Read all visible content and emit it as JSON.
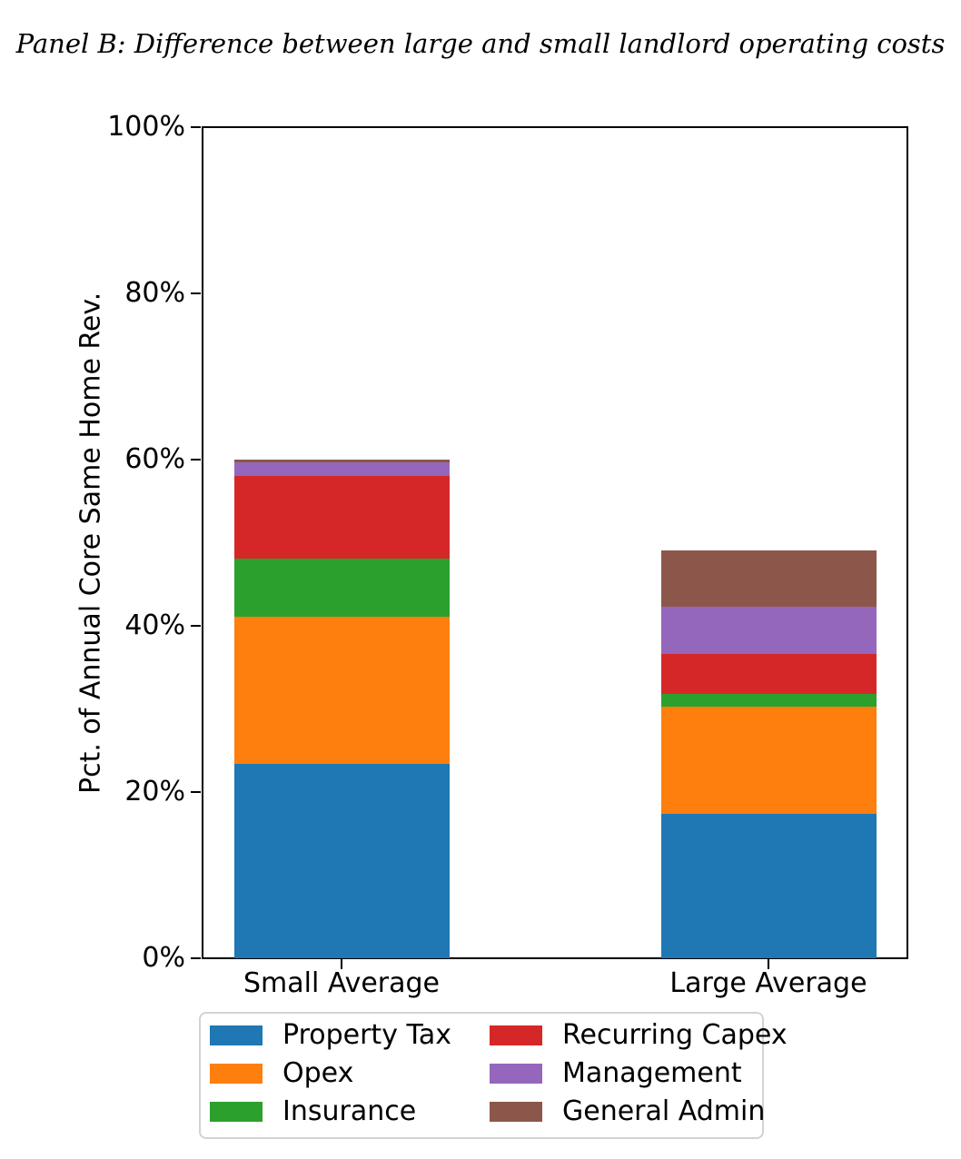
{
  "chart_data": {
    "type": "bar",
    "stacked": true,
    "title": "Panel B: Difference between large and small landlord operating costs",
    "ylabel": "Pct. of Annual Core Same Home Rev.",
    "xlabel": "",
    "categories": [
      "Small Average",
      "Large Average"
    ],
    "series": [
      {
        "name": "Property Tax",
        "color": "#1f77b4",
        "values": [
          23.4,
          17.4
        ]
      },
      {
        "name": "Opex",
        "color": "#ff7f0e",
        "values": [
          17.7,
          12.9
        ]
      },
      {
        "name": "Insurance",
        "color": "#2ca02c",
        "values": [
          7.0,
          1.5
        ]
      },
      {
        "name": "Recurring Capex",
        "color": "#d62728",
        "values": [
          9.9,
          4.8
        ]
      },
      {
        "name": "Management",
        "color": "#9467bd",
        "values": [
          1.7,
          5.7
        ]
      },
      {
        "name": "General Admin",
        "color": "#8c564b",
        "values": [
          0.25,
          6.8
        ]
      }
    ],
    "bar_totals": [
      59.95,
      49.1
    ],
    "ylim": [
      0,
      100
    ],
    "yticks": [
      0,
      20,
      40,
      60,
      80,
      100
    ],
    "ytick_labels": [
      "0%",
      "20%",
      "40%",
      "60%",
      "80%",
      "100%"
    ],
    "grid": false,
    "legend_position": "below",
    "legend_columns": 2
  }
}
